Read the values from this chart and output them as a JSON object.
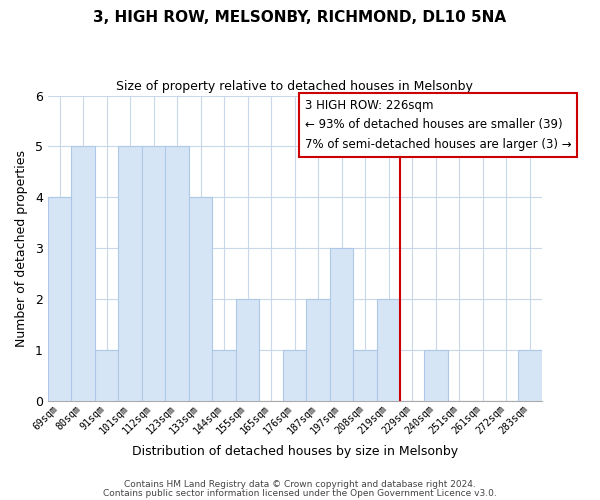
{
  "title": "3, HIGH ROW, MELSONBY, RICHMOND, DL10 5NA",
  "subtitle": "Size of property relative to detached houses in Melsonby",
  "xlabel": "Distribution of detached houses by size in Melsonby",
  "ylabel": "Number of detached properties",
  "bar_color": "#d6e5f5",
  "bar_edge_color": "#aec8e8",
  "categories": [
    "69sqm",
    "80sqm",
    "91sqm",
    "101sqm",
    "112sqm",
    "123sqm",
    "133sqm",
    "144sqm",
    "155sqm",
    "165sqm",
    "176sqm",
    "187sqm",
    "197sqm",
    "208sqm",
    "219sqm",
    "229sqm",
    "240sqm",
    "251sqm",
    "261sqm",
    "272sqm",
    "283sqm"
  ],
  "values": [
    4,
    5,
    1,
    5,
    5,
    5,
    4,
    1,
    2,
    0,
    1,
    2,
    3,
    1,
    2,
    0,
    1,
    0,
    0,
    0,
    1
  ],
  "ylim": [
    0,
    6
  ],
  "yticks": [
    0,
    1,
    2,
    3,
    4,
    5,
    6
  ],
  "vline_color": "#cc0000",
  "annotation_title": "3 HIGH ROW: 226sqm",
  "annotation_line1": "← 93% of detached houses are smaller (39)",
  "annotation_line2": "7% of semi-detached houses are larger (3) →",
  "footer1": "Contains HM Land Registry data © Crown copyright and database right 2024.",
  "footer2": "Contains public sector information licensed under the Open Government Licence v3.0.",
  "background_color": "#ffffff",
  "grid_color": "#c8d8e8"
}
